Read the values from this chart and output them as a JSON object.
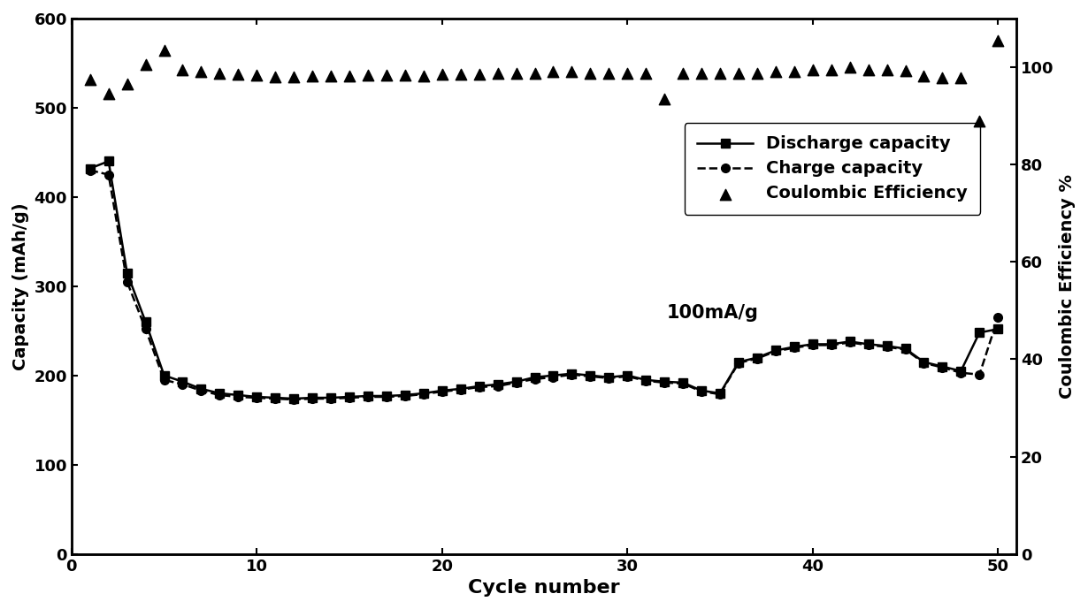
{
  "discharge_cycles": [
    1,
    2,
    3,
    4,
    5,
    6,
    7,
    8,
    9,
    10,
    11,
    12,
    13,
    14,
    15,
    16,
    17,
    18,
    19,
    20,
    21,
    22,
    23,
    24,
    25,
    26,
    27,
    28,
    29,
    30,
    31,
    32,
    33,
    34,
    35,
    36,
    37,
    38,
    39,
    40,
    41,
    42,
    43,
    44,
    45,
    46,
    47,
    48,
    49,
    50
  ],
  "discharge_values": [
    432,
    440,
    315,
    260,
    200,
    193,
    185,
    180,
    178,
    176,
    175,
    174,
    175,
    175,
    176,
    177,
    177,
    178,
    180,
    183,
    185,
    188,
    190,
    193,
    198,
    200,
    202,
    200,
    198,
    200,
    195,
    193,
    192,
    183,
    180,
    215,
    220,
    228,
    232,
    235,
    235,
    238,
    235,
    233,
    230,
    215,
    210,
    205,
    248,
    252
  ],
  "charge_cycles": [
    1,
    2,
    3,
    4,
    5,
    6,
    7,
    8,
    9,
    10,
    11,
    12,
    13,
    14,
    15,
    16,
    17,
    18,
    19,
    20,
    21,
    22,
    23,
    24,
    25,
    26,
    27,
    28,
    29,
    30,
    31,
    32,
    33,
    34,
    35,
    36,
    37,
    38,
    39,
    40,
    41,
    42,
    43,
    44,
    45,
    46,
    47,
    48,
    49,
    50
  ],
  "charge_values": [
    430,
    425,
    305,
    252,
    195,
    190,
    183,
    178,
    176,
    175,
    174,
    173,
    174,
    174,
    175,
    176,
    176,
    177,
    179,
    182,
    184,
    187,
    188,
    192,
    196,
    198,
    201,
    199,
    197,
    199,
    194,
    192,
    191,
    182,
    179,
    214,
    219,
    227,
    231,
    234,
    234,
    237,
    234,
    232,
    229,
    214,
    209,
    203,
    201,
    265
  ],
  "ce_cycles": [
    1,
    2,
    3,
    4,
    5,
    6,
    7,
    8,
    9,
    10,
    11,
    12,
    13,
    14,
    15,
    16,
    17,
    18,
    19,
    20,
    21,
    22,
    23,
    24,
    25,
    26,
    27,
    28,
    29,
    30,
    31,
    32,
    33,
    34,
    35,
    36,
    37,
    38,
    39,
    40,
    41,
    42,
    43,
    44,
    45,
    46,
    47,
    48,
    49,
    50
  ],
  "ce_values": [
    97.5,
    94.5,
    96.5,
    100.5,
    103.5,
    99.5,
    99.0,
    98.8,
    98.5,
    98.3,
    98.0,
    98.0,
    98.2,
    98.2,
    98.2,
    98.3,
    98.3,
    98.3,
    98.2,
    98.5,
    98.5,
    98.5,
    98.8,
    98.8,
    98.8,
    99.0,
    99.0,
    98.8,
    98.8,
    98.8,
    98.8,
    93.5,
    98.8,
    98.8,
    98.8,
    98.8,
    98.8,
    99.0,
    99.0,
    99.5,
    99.5,
    100.0,
    99.5,
    99.5,
    99.2,
    98.2,
    97.8,
    97.8,
    89.0,
    105.5
  ],
  "xlabel": "Cycle number",
  "ylabel_left": "Capacity (mAh/g)",
  "ylabel_right": "Coulombic Efficiency %",
  "annotation": "100mA/g",
  "xlim": [
    0,
    51
  ],
  "ylim_left": [
    0,
    600
  ],
  "ylim_right": [
    0,
    110
  ],
  "xticks": [
    0,
    10,
    20,
    30,
    40,
    50
  ],
  "yticks_left": [
    0,
    100,
    200,
    300,
    400,
    500,
    600
  ],
  "yticks_right": [
    0,
    20,
    40,
    60,
    80,
    100
  ],
  "line_color": "#000000",
  "bg_color": "#ffffff",
  "legend_discharge": "Discharge capacity",
  "legend_charge": "Charge capacity",
  "legend_ce": "Coulombic Efficiency"
}
